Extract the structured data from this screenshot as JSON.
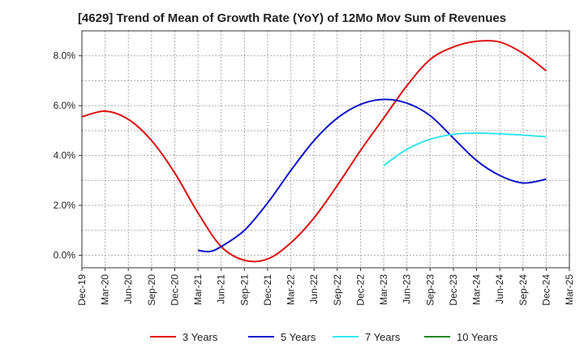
{
  "chart_data": {
    "type": "line",
    "title": "[4629]  Trend of Mean of Growth Rate (YoY) of 12Mo Mov Sum of Revenues",
    "xlabel": "",
    "ylabel": "",
    "ylim": [
      -0.5,
      9.0
    ],
    "yticks": [
      0.0,
      2.0,
      4.0,
      6.0,
      8.0
    ],
    "ytick_labels": [
      "0.0%",
      "2.0%",
      "4.0%",
      "6.0%",
      "8.0%"
    ],
    "x_categories": [
      "Dec-19",
      "Mar-20",
      "Jun-20",
      "Sep-20",
      "Dec-20",
      "Mar-21",
      "Jun-21",
      "Sep-21",
      "Dec-21",
      "Mar-22",
      "Jun-22",
      "Sep-22",
      "Dec-22",
      "Mar-23",
      "Jun-23",
      "Sep-23",
      "Dec-23",
      "Mar-24",
      "Jun-24",
      "Sep-24",
      "Dec-24",
      "Mar-25"
    ],
    "grid": true,
    "legend_position": "bottom",
    "series": [
      {
        "name": "3 Years",
        "color": "#dd1111",
        "points": [
          [
            0,
            5.55
          ],
          [
            1,
            5.78
          ],
          [
            2,
            5.45
          ],
          [
            3,
            4.6
          ],
          [
            4,
            3.3
          ],
          [
            5,
            1.7
          ],
          [
            6,
            0.35
          ],
          [
            7,
            -0.2
          ],
          [
            8,
            -0.15
          ],
          [
            9,
            0.5
          ],
          [
            10,
            1.5
          ],
          [
            11,
            2.8
          ],
          [
            12,
            4.2
          ],
          [
            13,
            5.5
          ],
          [
            14,
            6.8
          ],
          [
            15,
            7.85
          ],
          [
            16,
            8.35
          ],
          [
            17,
            8.58
          ],
          [
            18,
            8.55
          ],
          [
            19,
            8.1
          ],
          [
            20,
            7.4
          ]
        ]
      },
      {
        "name": "5 Years",
        "color": "#1111cc",
        "points": [
          [
            5,
            0.2
          ],
          [
            5.5,
            0.15
          ],
          [
            6,
            0.35
          ],
          [
            7,
            1.0
          ],
          [
            8,
            2.1
          ],
          [
            9,
            3.4
          ],
          [
            10,
            4.6
          ],
          [
            11,
            5.5
          ],
          [
            12,
            6.05
          ],
          [
            13,
            6.25
          ],
          [
            14,
            6.1
          ],
          [
            15,
            5.6
          ],
          [
            16,
            4.7
          ],
          [
            17,
            3.8
          ],
          [
            18,
            3.2
          ],
          [
            19,
            2.9
          ],
          [
            20,
            3.05
          ]
        ]
      },
      {
        "name": "7 Years",
        "color": "#33e5ef",
        "points": [
          [
            13,
            3.6
          ],
          [
            14,
            4.25
          ],
          [
            15,
            4.65
          ],
          [
            16,
            4.85
          ],
          [
            17,
            4.9
          ],
          [
            18,
            4.87
          ],
          [
            19,
            4.82
          ],
          [
            20,
            4.75
          ]
        ]
      },
      {
        "name": "10 Years",
        "color": "#228822",
        "points": []
      }
    ]
  }
}
